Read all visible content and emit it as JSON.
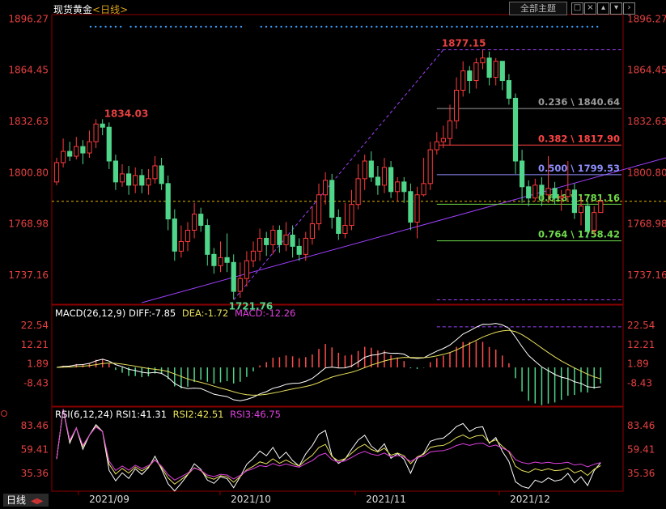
{
  "header": {
    "symbol": "现货黄金",
    "period": "<日线>"
  },
  "toolbar": {
    "theme_label": "全部主题",
    "icons": [
      "square-icon",
      "x-box-icon",
      "up-box-icon",
      "down-box-icon"
    ],
    "selected_icon": "chevron-right-icon"
  },
  "colors": {
    "up": "#ff3a3a",
    "down": "#4fd68a",
    "price_label": "#e64040",
    "macd_pos": "#ff4d4d",
    "macd_neg": "#4fd68a",
    "diff": "#ffffff",
    "dea": "#e8e05a",
    "macd_label": "#e040e0",
    "rsi1": "#ffffff",
    "rsi2": "#e8e05a",
    "rsi3": "#e040e0",
    "trendline": "#a040ff",
    "dots": "#3aa0ff",
    "current": "#e6b400"
  },
  "chart_data": {
    "type": "candlestick",
    "y_ticks": [
      "1896.27",
      "1864.45",
      "1832.63",
      "1800.80",
      "1768.98",
      "1737.16"
    ],
    "y_range": [
      1720,
      1898
    ],
    "x_labels": [
      "2021/09",
      "2021/10",
      "2021/11",
      "2021/12"
    ],
    "current_price": 1783,
    "annotations": {
      "high": "1877.15",
      "left_high": "1834.03",
      "low": "1721.76"
    },
    "fibonacci": [
      {
        "label": "0.236 \\ 1840.64",
        "value": 1840.64,
        "color": "#9a9a9a"
      },
      {
        "label": "0.382 \\ 1817.90",
        "value": 1817.9,
        "color": "#ff4444"
      },
      {
        "label": "0.500 \\ 1799.53",
        "value": 1799.53,
        "color": "#8e8eff"
      },
      {
        "label": "0.618 \\ 1781.16",
        "value": 1781.16,
        "color": "#6fdc4a"
      },
      {
        "label": "0.764 \\ 1758.42",
        "value": 1758.42,
        "color": "#6fdc4a"
      }
    ],
    "fib_dashed_levels": [
      1877.15,
      1721.76
    ],
    "candles": [
      [
        1795,
        1807,
        1810,
        1793
      ],
      [
        1807,
        1814,
        1822,
        1804
      ],
      [
        1814,
        1811,
        1820,
        1808
      ],
      [
        1811,
        1817,
        1823,
        1809
      ],
      [
        1817,
        1813,
        1821,
        1806
      ],
      [
        1813,
        1820,
        1827,
        1810
      ],
      [
        1820,
        1831,
        1834,
        1816
      ],
      [
        1831,
        1829,
        1834,
        1824
      ],
      [
        1829,
        1808,
        1832,
        1803
      ],
      [
        1808,
        1795,
        1812,
        1790
      ],
      [
        1795,
        1800,
        1806,
        1792
      ],
      [
        1800,
        1793,
        1805,
        1787
      ],
      [
        1793,
        1799,
        1804,
        1788
      ],
      [
        1799,
        1793,
        1803,
        1788
      ],
      [
        1793,
        1797,
        1803,
        1787
      ],
      [
        1797,
        1805,
        1811,
        1794
      ],
      [
        1805,
        1794,
        1810,
        1790
      ],
      [
        1794,
        1772,
        1799,
        1765
      ],
      [
        1772,
        1752,
        1778,
        1746
      ],
      [
        1752,
        1758,
        1768,
        1748
      ],
      [
        1758,
        1765,
        1770,
        1752
      ],
      [
        1765,
        1775,
        1782,
        1760
      ],
      [
        1775,
        1768,
        1779,
        1764
      ],
      [
        1768,
        1750,
        1772,
        1743
      ],
      [
        1750,
        1743,
        1754,
        1738
      ],
      [
        1743,
        1748,
        1758,
        1739
      ],
      [
        1748,
        1745,
        1763,
        1739
      ],
      [
        1745,
        1727,
        1750,
        1722
      ],
      [
        1727,
        1735,
        1745,
        1723
      ],
      [
        1735,
        1746,
        1752,
        1730
      ],
      [
        1746,
        1752,
        1758,
        1742
      ],
      [
        1752,
        1760,
        1766,
        1746
      ],
      [
        1760,
        1756,
        1764,
        1749
      ],
      [
        1756,
        1765,
        1768,
        1750
      ],
      [
        1765,
        1756,
        1768,
        1751
      ],
      [
        1756,
        1762,
        1770,
        1752
      ],
      [
        1762,
        1755,
        1768,
        1748
      ],
      [
        1755,
        1750,
        1760,
        1746
      ],
      [
        1750,
        1760,
        1764,
        1746
      ],
      [
        1760,
        1769,
        1780,
        1756
      ],
      [
        1769,
        1787,
        1794,
        1765
      ],
      [
        1787,
        1796,
        1801,
        1781
      ],
      [
        1796,
        1773,
        1800,
        1766
      ],
      [
        1773,
        1763,
        1778,
        1759
      ],
      [
        1763,
        1768,
        1782,
        1760
      ],
      [
        1768,
        1781,
        1790,
        1765
      ],
      [
        1781,
        1797,
        1806,
        1778
      ],
      [
        1797,
        1808,
        1812,
        1790
      ],
      [
        1808,
        1798,
        1814,
        1795
      ],
      [
        1798,
        1793,
        1805,
        1787
      ],
      [
        1793,
        1804,
        1810,
        1788
      ],
      [
        1804,
        1789,
        1808,
        1785
      ],
      [
        1789,
        1795,
        1798,
        1783
      ],
      [
        1795,
        1789,
        1798,
        1782
      ],
      [
        1789,
        1770,
        1794,
        1765
      ],
      [
        1770,
        1787,
        1792,
        1760
      ],
      [
        1787,
        1794,
        1810,
        1786
      ],
      [
        1794,
        1815,
        1820,
        1790
      ],
      [
        1815,
        1820,
        1826,
        1812
      ],
      [
        1820,
        1822,
        1830,
        1816
      ],
      [
        1822,
        1833,
        1843,
        1818
      ],
      [
        1833,
        1852,
        1860,
        1828
      ],
      [
        1852,
        1864,
        1870,
        1848
      ],
      [
        1864,
        1858,
        1867,
        1850
      ],
      [
        1858,
        1869,
        1872,
        1853
      ],
      [
        1869,
        1872,
        1877,
        1865
      ],
      [
        1872,
        1860,
        1876,
        1855
      ],
      [
        1860,
        1870,
        1872,
        1855
      ],
      [
        1870,
        1858,
        1868,
        1852
      ],
      [
        1858,
        1847,
        1862,
        1843
      ],
      [
        1847,
        1808,
        1850,
        1800
      ],
      [
        1808,
        1792,
        1815,
        1782
      ],
      [
        1792,
        1785,
        1796,
        1780
      ],
      [
        1785,
        1793,
        1797,
        1783
      ],
      [
        1793,
        1787,
        1798,
        1780
      ],
      [
        1787,
        1791,
        1811,
        1782
      ],
      [
        1791,
        1785,
        1795,
        1781
      ],
      [
        1785,
        1786,
        1790,
        1777
      ],
      [
        1786,
        1790,
        1808,
        1783
      ],
      [
        1790,
        1776,
        1794,
        1772
      ],
      [
        1776,
        1780,
        1786,
        1768
      ],
      [
        1780,
        1765,
        1783,
        1760
      ],
      [
        1765,
        1776,
        1780,
        1762
      ],
      [
        1776,
        1783,
        1785,
        1776
      ]
    ]
  },
  "macd": {
    "label": "MACD(26,12,9)",
    "diff_label": "DIFF:-7.85",
    "dea_label": "DEA:-1.72",
    "macd_label": "MACD:-12.26",
    "y_ticks": [
      "22.54",
      "12.21",
      "1.89",
      "-8.43"
    ],
    "y_range": [
      -20,
      27
    ]
  },
  "rsi": {
    "label": "RSI(6,12,24)",
    "rsi1_label": "RSI1:41.31",
    "rsi2_label": "RSI2:42.51",
    "rsi3_label": "RSI3:46.75",
    "y_ticks": [
      "83.46",
      "59.41",
      "35.36"
    ],
    "y_range": [
      20,
      95
    ]
  },
  "footer": {
    "period_tab": "日线"
  }
}
